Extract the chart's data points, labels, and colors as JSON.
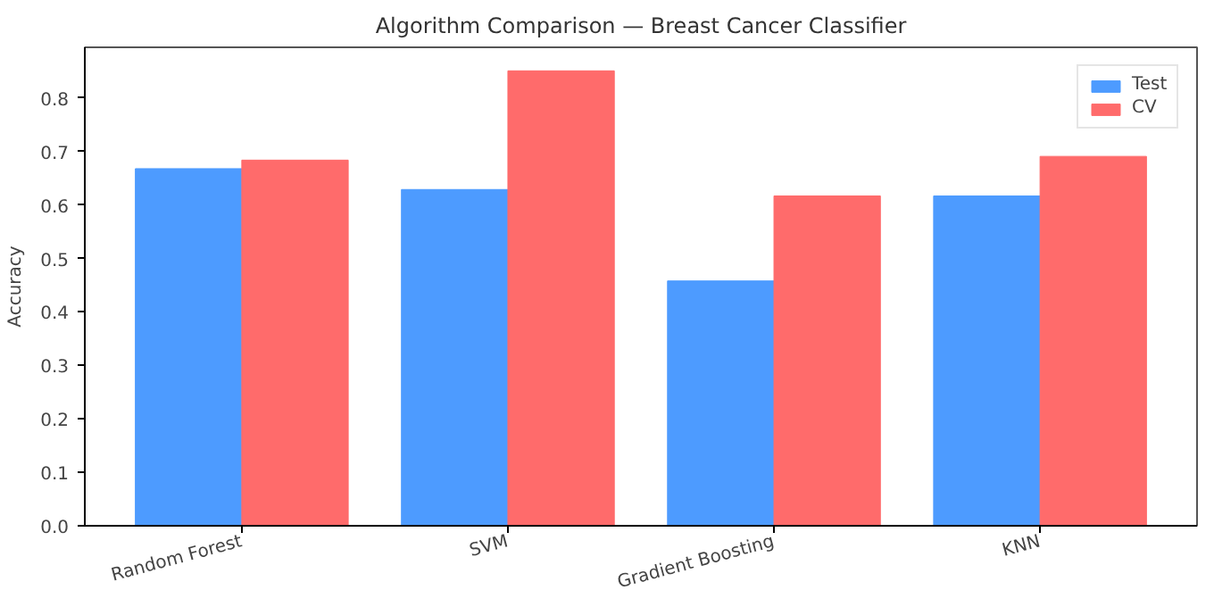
{
  "chart_data": {
    "type": "bar",
    "title": "Algorithm Comparison — Breast Cancer Classifier",
    "ylabel": "Accuracy",
    "categories": [
      "Random Forest",
      "SVM",
      "Gradient Boosting",
      "KNN"
    ],
    "series": [
      {
        "name": "Test",
        "color": "#4d9bff",
        "values": [
          0.668,
          0.629,
          0.458,
          0.617
        ]
      },
      {
        "name": "CV",
        "color": "#ff6b6b",
        "values": [
          0.684,
          0.851,
          0.617,
          0.691
        ]
      }
    ],
    "ylim": [
      0,
      0.895
    ],
    "yticks": [
      {
        "value": 0,
        "label": "0.0"
      },
      0.1,
      0.2,
      0.3,
      0.4,
      0.5,
      0.6,
      0.7,
      0.8
    ],
    "grid": false,
    "legend": "top right"
  }
}
